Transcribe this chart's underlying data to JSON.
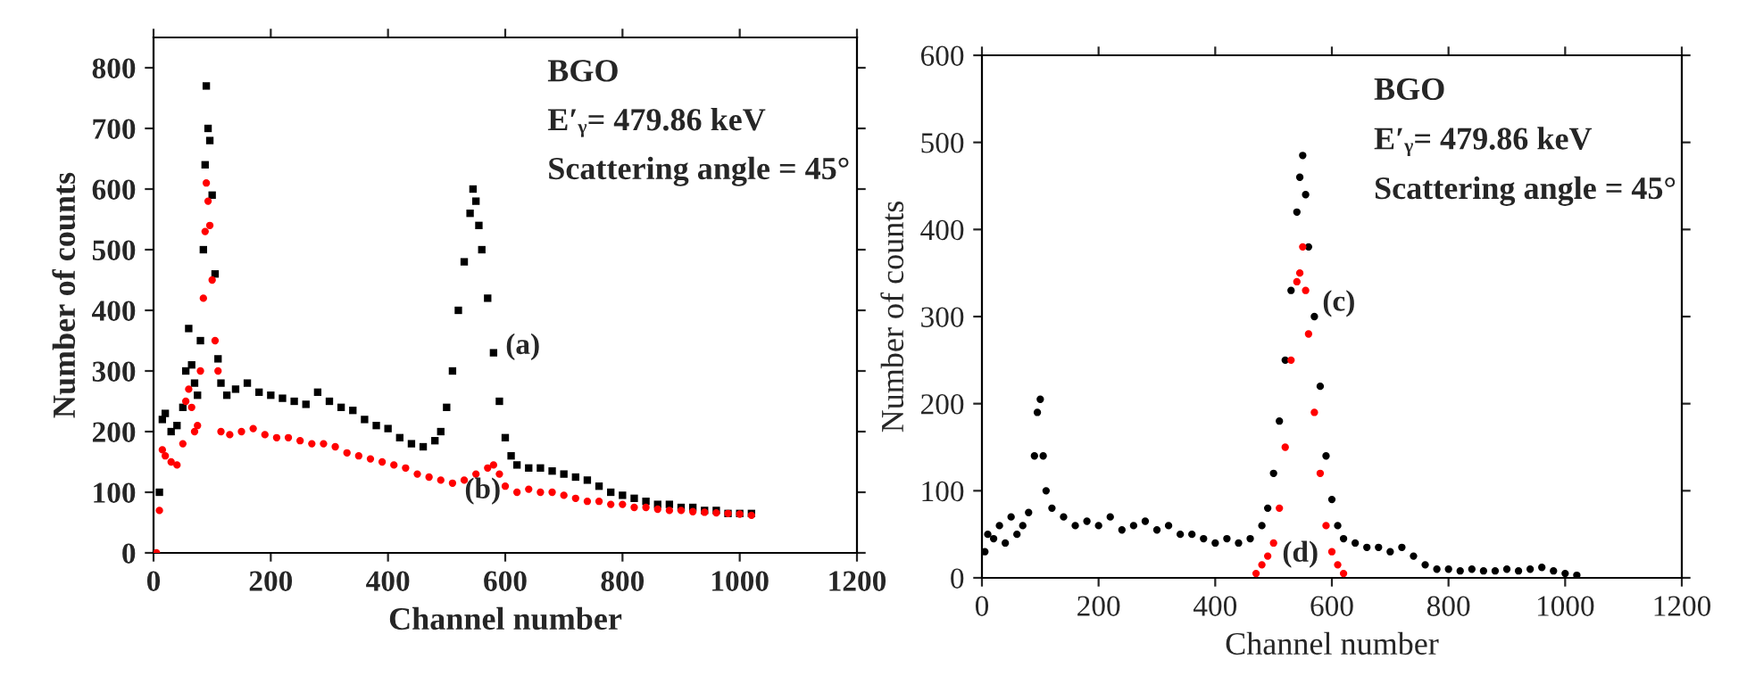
{
  "chart_data": [
    {
      "type": "scatter",
      "xlabel": "Channel number",
      "ylabel": "Number of counts",
      "xlim": [
        0,
        1200
      ],
      "ylim": [
        0,
        850
      ],
      "xticks": [
        0,
        200,
        400,
        600,
        800,
        1000,
        1200
      ],
      "yticks": [
        0,
        100,
        200,
        300,
        400,
        500,
        600,
        700,
        800
      ],
      "grid": false,
      "legend": false,
      "annotations": [
        "BGO",
        "E′ᵧ= 479.86 keV",
        "Scattering angle = 45°",
        "(a)",
        "(b)"
      ],
      "series": [
        {
          "color": "#000000",
          "marker": "square",
          "x": [
            10,
            15,
            20,
            30,
            40,
            50,
            55,
            60,
            65,
            70,
            75,
            80,
            85,
            88,
            90,
            93,
            96,
            100,
            105,
            110,
            115,
            125,
            140,
            160,
            180,
            200,
            220,
            240,
            260,
            280,
            300,
            320,
            340,
            360,
            380,
            400,
            420,
            440,
            460,
            480,
            490,
            500,
            510,
            520,
            530,
            540,
            545,
            550,
            555,
            560,
            570,
            580,
            590,
            600,
            610,
            620,
            640,
            660,
            680,
            700,
            720,
            740,
            760,
            780,
            800,
            820,
            840,
            860,
            880,
            900,
            920,
            940,
            960,
            980,
            1000,
            1020
          ],
          "values": [
            100,
            220,
            230,
            200,
            210,
            240,
            300,
            370,
            310,
            280,
            260,
            350,
            500,
            640,
            770,
            700,
            680,
            590,
            460,
            320,
            280,
            260,
            270,
            280,
            265,
            260,
            255,
            250,
            245,
            265,
            250,
            240,
            235,
            220,
            210,
            205,
            190,
            180,
            175,
            185,
            200,
            240,
            300,
            400,
            480,
            560,
            600,
            580,
            540,
            500,
            420,
            330,
            250,
            190,
            160,
            145,
            140,
            140,
            135,
            130,
            125,
            120,
            110,
            100,
            95,
            90,
            85,
            80,
            80,
            75,
            75,
            70,
            70,
            65,
            65,
            65
          ]
        },
        {
          "color": "#ff0000",
          "marker": "circle",
          "x": [
            5,
            10,
            15,
            20,
            30,
            40,
            50,
            55,
            60,
            65,
            70,
            75,
            80,
            85,
            88,
            90,
            93,
            96,
            100,
            105,
            110,
            115,
            130,
            150,
            170,
            190,
            210,
            230,
            250,
            270,
            290,
            310,
            330,
            350,
            370,
            390,
            410,
            430,
            450,
            470,
            490,
            510,
            530,
            550,
            570,
            580,
            590,
            600,
            620,
            640,
            660,
            680,
            700,
            720,
            740,
            760,
            780,
            800,
            820,
            840,
            860,
            880,
            900,
            920,
            940,
            960,
            980,
            1000,
            1020
          ],
          "values": [
            0,
            70,
            170,
            160,
            150,
            145,
            180,
            250,
            270,
            240,
            200,
            210,
            300,
            420,
            530,
            610,
            580,
            540,
            450,
            350,
            300,
            200,
            195,
            200,
            205,
            195,
            190,
            190,
            185,
            180,
            180,
            175,
            165,
            160,
            155,
            150,
            145,
            140,
            130,
            125,
            120,
            115,
            120,
            130,
            140,
            145,
            130,
            110,
            100,
            105,
            100,
            100,
            95,
            90,
            85,
            85,
            80,
            80,
            75,
            75,
            72,
            70,
            70,
            68,
            67,
            66,
            65,
            64,
            62
          ]
        }
      ]
    },
    {
      "type": "scatter",
      "xlabel": "Channel number",
      "ylabel": "Number of counts",
      "xlim": [
        0,
        1200
      ],
      "ylim": [
        0,
        600
      ],
      "xticks": [
        0,
        200,
        400,
        600,
        800,
        1000,
        1200
      ],
      "yticks": [
        0,
        100,
        200,
        300,
        400,
        500,
        600
      ],
      "grid": false,
      "legend": false,
      "annotations": [
        "BGO",
        "E′ᵧ= 479.86 keV",
        "Scattering angle = 45°",
        "(c)",
        "(d)"
      ],
      "series": [
        {
          "color": "#000000",
          "marker": "circle",
          "x": [
            5,
            10,
            20,
            30,
            40,
            50,
            60,
            70,
            80,
            90,
            95,
            100,
            105,
            110,
            120,
            140,
            160,
            180,
            200,
            220,
            240,
            260,
            280,
            300,
            320,
            340,
            360,
            380,
            400,
            420,
            440,
            460,
            480,
            490,
            500,
            510,
            520,
            530,
            540,
            545,
            550,
            555,
            560,
            570,
            580,
            590,
            600,
            610,
            620,
            640,
            660,
            680,
            700,
            720,
            740,
            760,
            780,
            800,
            820,
            840,
            860,
            880,
            900,
            920,
            940,
            960,
            980,
            1000,
            1020
          ],
          "values": [
            30,
            50,
            45,
            60,
            40,
            70,
            50,
            60,
            75,
            140,
            190,
            205,
            140,
            100,
            80,
            70,
            60,
            65,
            60,
            70,
            55,
            60,
            65,
            55,
            60,
            50,
            50,
            45,
            40,
            45,
            40,
            45,
            60,
            80,
            120,
            180,
            250,
            330,
            420,
            460,
            485,
            440,
            380,
            300,
            220,
            140,
            90,
            60,
            45,
            40,
            35,
            35,
            30,
            35,
            25,
            15,
            10,
            10,
            8,
            10,
            8,
            8,
            10,
            8,
            10,
            12,
            8,
            5,
            3
          ]
        },
        {
          "color": "#ff0000",
          "marker": "circle",
          "x": [
            470,
            480,
            490,
            500,
            510,
            520,
            530,
            540,
            545,
            550,
            555,
            560,
            570,
            580,
            590,
            600,
            610,
            620
          ],
          "values": [
            5,
            15,
            25,
            40,
            80,
            150,
            250,
            340,
            350,
            380,
            330,
            280,
            190,
            120,
            60,
            30,
            15,
            5
          ]
        }
      ]
    }
  ]
}
